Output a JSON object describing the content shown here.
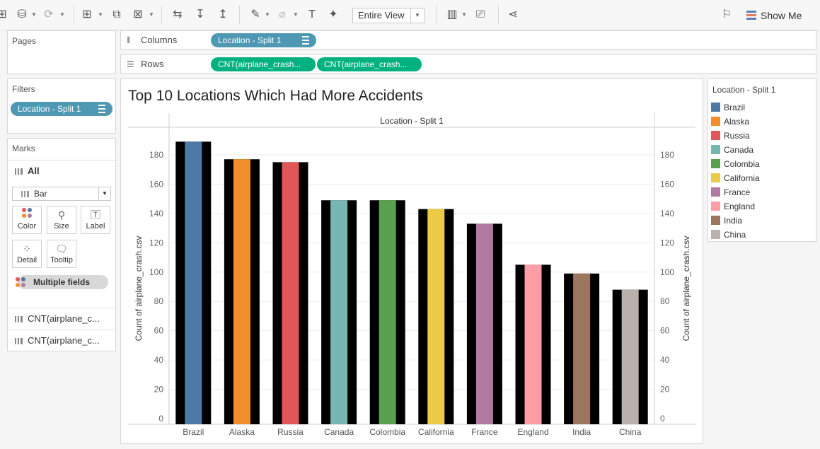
{
  "toolbar": {
    "entire_view": "Entire View",
    "show_me": "Show Me",
    "icons": [
      "new-data-source-icon",
      "datasource-icon",
      "refresh-icon",
      "new-worksheet-icon",
      "duplicate-icon",
      "clear-icon",
      "swap-icon",
      "sort-ascending-icon",
      "sort-descending-icon",
      "highlight-icon",
      "attach-icon",
      "text-label-icon",
      "pin-icon",
      "fit-icon",
      "presentation-icon",
      "share-icon",
      "format-painter-icon"
    ]
  },
  "pages": {
    "title": "Pages"
  },
  "filters": {
    "title": "Filters",
    "pill": "Location - Split 1"
  },
  "marks": {
    "title": "Marks",
    "all_label": "All",
    "mark_type": "Bar",
    "buttons": {
      "color": "Color",
      "size": "Size",
      "label": "Label",
      "detail": "Detail",
      "tooltip": "Tooltip"
    },
    "multiple_fields": "Multiple fields",
    "cards": [
      "CNT(airplane_c...",
      "CNT(airplane_c..."
    ]
  },
  "shelves": {
    "columns_label": "Columns",
    "columns_pill": "Location - Split 1",
    "rows_label": "Rows",
    "rows_pills": [
      "CNT(airplane_crash...",
      "CNT(airplane_crash..."
    ]
  },
  "legend": {
    "title": "Location - Split 1"
  },
  "chart_data": {
    "type": "bar",
    "title": "Top 10 Locations Which Had More Accidents",
    "header": "Location - Split 1",
    "ylabel": "Count of airplane_crash.csv",
    "ylabel_right": "Count of airplane_crash.csv",
    "ylim": [
      0,
      200
    ],
    "yticks": [
      0,
      20,
      40,
      60,
      80,
      100,
      120,
      140,
      160,
      180
    ],
    "categories": [
      "Brazil",
      "Alaska",
      "Russia",
      "Canada",
      "Colombia",
      "California",
      "France",
      "England",
      "India",
      "China"
    ],
    "values": [
      189,
      177,
      175,
      149,
      149,
      143,
      133,
      105,
      99,
      88
    ],
    "colors": [
      "#4e79a7",
      "#f28e2b",
      "#e15759",
      "#76b7b2",
      "#59a14f",
      "#edc948",
      "#b07aa1",
      "#ff9da7",
      "#9c755f",
      "#bab0ac"
    ],
    "back_bar_color": "#000000",
    "gridlines": true
  }
}
